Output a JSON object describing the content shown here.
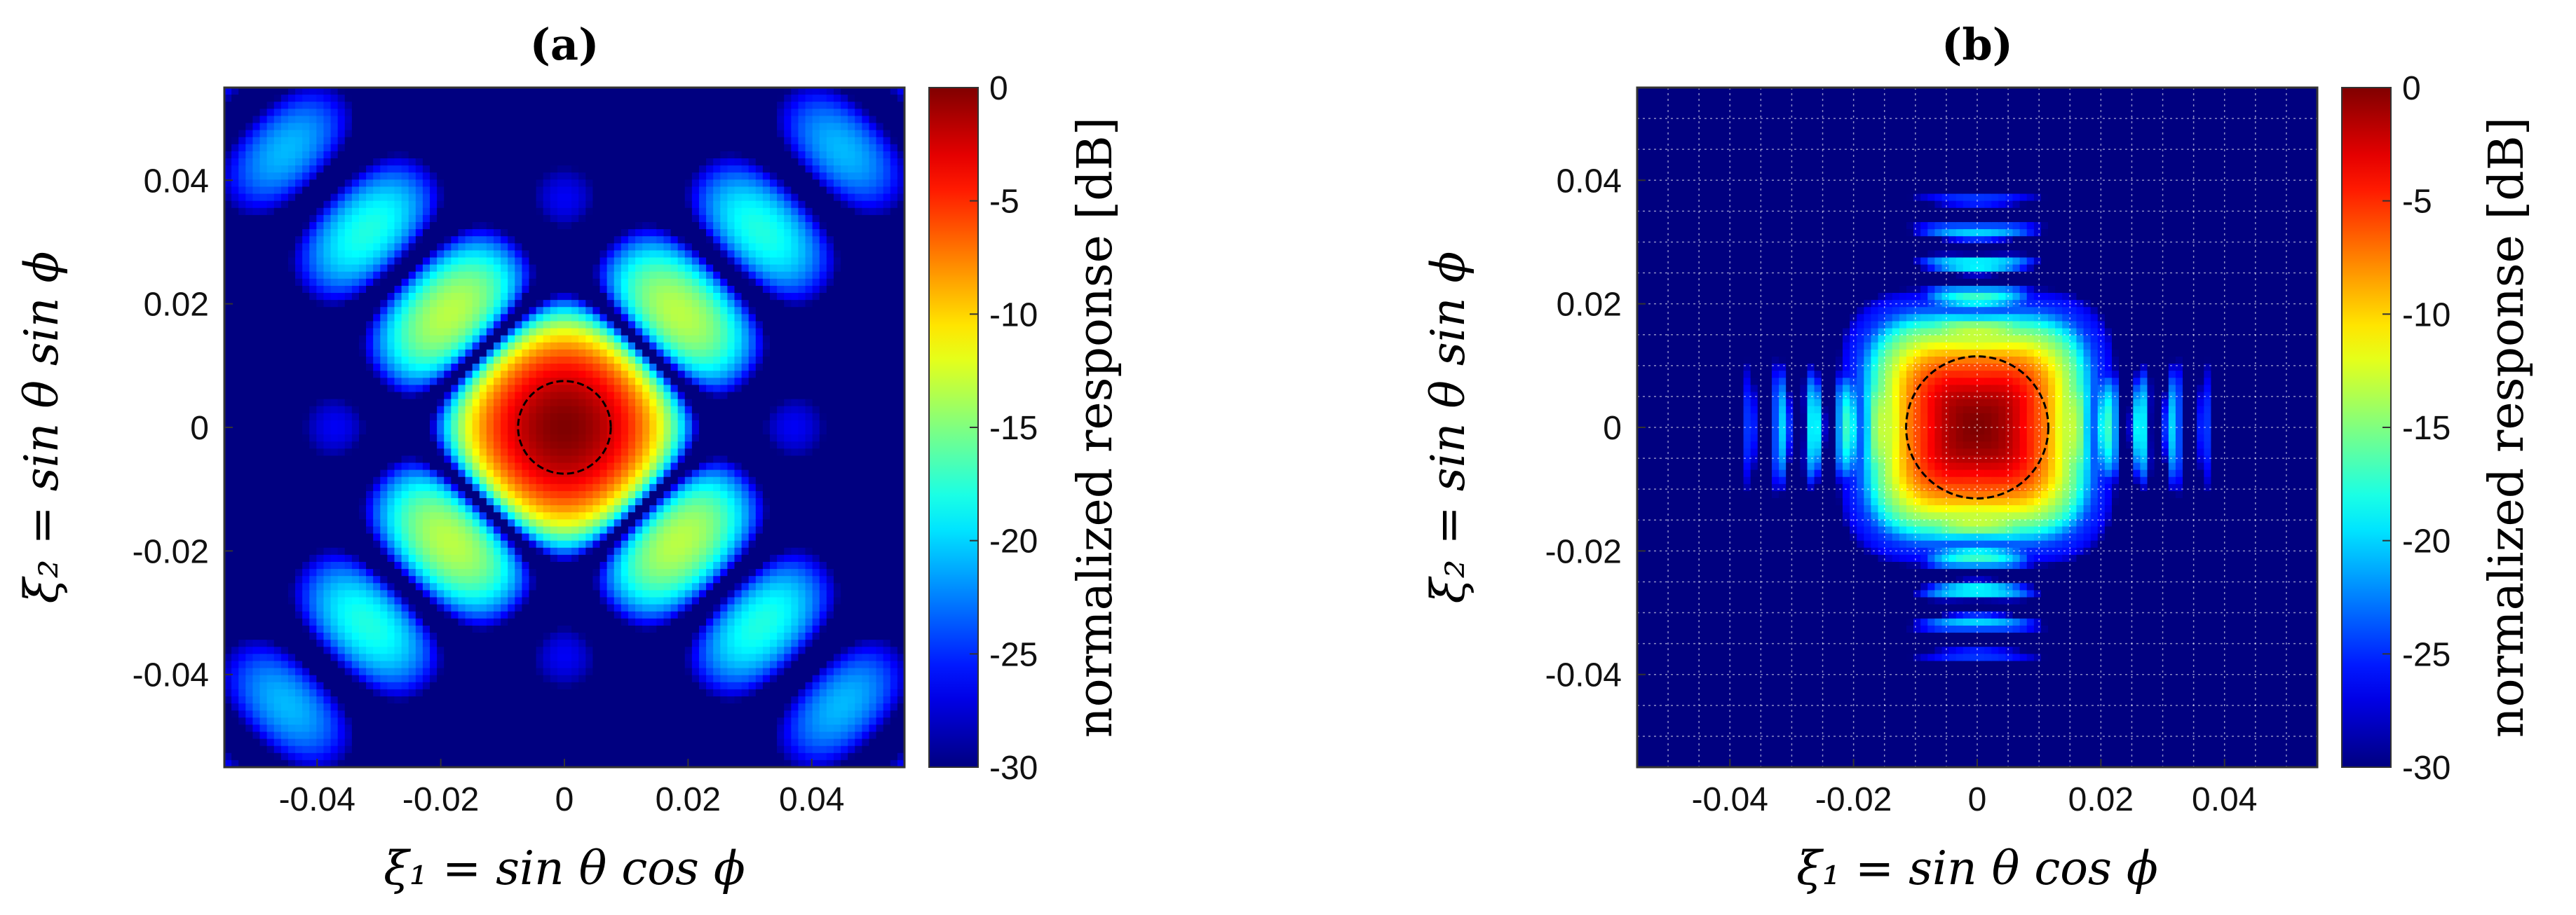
{
  "chart_data": [
    {
      "type": "heatmap",
      "title": "(a)",
      "xlabel": "ξ₁ = sin θ cos ϕ",
      "ylabel": "ξ₂ = sin θ sin ϕ",
      "xlim": [
        -0.055,
        0.055
      ],
      "ylim": [
        -0.055,
        0.055
      ],
      "xticks": [
        -0.04,
        -0.02,
        0,
        0.02,
        0.04
      ],
      "xtick_labels": [
        "-0.04",
        "-0.02",
        "0",
        "0.02",
        "0.04"
      ],
      "yticks": [
        0.04,
        0.02,
        0,
        -0.02,
        -0.04
      ],
      "ytick_labels": [
        "0.04",
        "0.02",
        "0",
        "-0.02",
        "-0.04"
      ],
      "grid": false,
      "pattern": "diagonal-lobes",
      "mainlobe_radius": 0.0075,
      "colorbar": {
        "label": "normalized response [dB]",
        "range": [
          -30,
          0
        ],
        "ticks": [
          0,
          -5,
          -10,
          -15,
          -20,
          -25,
          -30
        ],
        "tick_labels": [
          "0",
          "-5",
          "-10",
          "-15",
          "-20",
          "-25",
          "-30"
        ]
      }
    },
    {
      "type": "heatmap",
      "title": "(b)",
      "xlabel": "ξ₁ = sin θ cos ϕ",
      "ylabel": "ξ₂ = sin θ sin ϕ",
      "xlim": [
        -0.055,
        0.055
      ],
      "ylim": [
        -0.055,
        0.055
      ],
      "xticks": [
        -0.04,
        -0.02,
        0,
        0.02,
        0.04
      ],
      "xtick_labels": [
        "-0.04",
        "-0.02",
        "0",
        "0.02",
        "0.04"
      ],
      "yticks": [
        0.04,
        0.02,
        0,
        -0.02,
        -0.04
      ],
      "ytick_labels": [
        "0.04",
        "0.02",
        "0",
        "-0.02",
        "-0.04"
      ],
      "grid": true,
      "pattern": "wide-mainlobe-rings",
      "mainlobe_radius": 0.0115,
      "colorbar": {
        "label": "normalized response [dB]",
        "range": [
          -30,
          0
        ],
        "ticks": [
          0,
          -5,
          -10,
          -15,
          -20,
          -25,
          -30
        ],
        "tick_labels": [
          "0",
          "-5",
          "-10",
          "-15",
          "-20",
          "-25",
          "-30"
        ]
      }
    }
  ]
}
